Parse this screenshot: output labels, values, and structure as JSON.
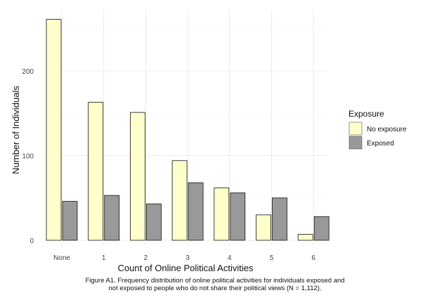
{
  "chart_data": {
    "type": "bar",
    "title": "",
    "xlabel": "Count of Online Political Activities",
    "ylabel": "Number of Individuals",
    "categories": [
      "None",
      "1",
      "2",
      "3",
      "4",
      "5",
      "6"
    ],
    "series": [
      {
        "name": "No exposure",
        "color": "#FFFFCC",
        "values": [
          261,
          163,
          151,
          94,
          62,
          30,
          7
        ]
      },
      {
        "name": "Exposed",
        "color": "#999999",
        "values": [
          46,
          53,
          43,
          68,
          56,
          50,
          28
        ]
      }
    ],
    "ylim": [
      0,
      280
    ],
    "yticks": [
      0,
      100,
      200
    ],
    "grid": true,
    "legend": {
      "title": "Exposure",
      "placement": "right"
    }
  },
  "caption": {
    "line1": "Figure A1. Frequency distribution of online political activities for individuals exposed and",
    "line2": "not exposed to people who do not share their political views (N = 1,112)."
  }
}
